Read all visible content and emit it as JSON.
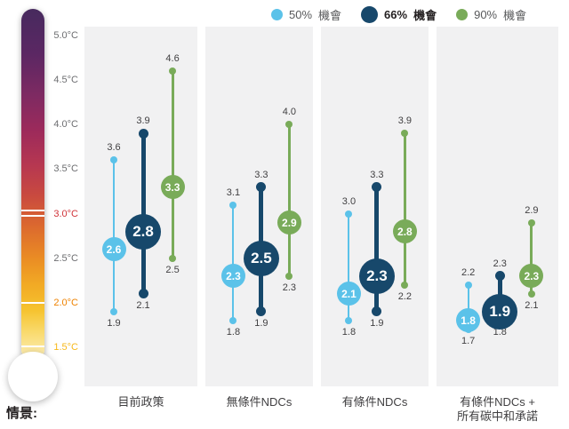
{
  "scenario_prefix": "情景:",
  "legend": {
    "items": [
      {
        "pct": "50%",
        "word": "機會",
        "color": "#5bc2e9",
        "bold": false
      },
      {
        "pct": "66%",
        "word": "機會",
        "color": "#17486b",
        "bold": true
      },
      {
        "pct": "90%",
        "word": "機會",
        "color": "#79ab59",
        "bold": false
      }
    ]
  },
  "axis": {
    "unit": "°C",
    "ticks": [
      {
        "label": "5.0°C",
        "t": 5.0,
        "color": "#6d6e71"
      },
      {
        "label": "4.5°C",
        "t": 4.5,
        "color": "#6d6e71"
      },
      {
        "label": "4.0°C",
        "t": 4.0,
        "color": "#6d6e71"
      },
      {
        "label": "3.5°C",
        "t": 3.5,
        "color": "#6d6e71"
      },
      {
        "label": "3.0°C",
        "t": 3.0,
        "color": "#d03238"
      },
      {
        "label": "2.5°C",
        "t": 2.5,
        "color": "#6d6e71"
      },
      {
        "label": "2.0°C",
        "t": 2.0,
        "color": "#ef8200"
      },
      {
        "label": "1.5°C",
        "t": 1.5,
        "color": "#f7b819"
      }
    ]
  },
  "chart_data": {
    "type": "range-dot",
    "title": "",
    "ylabel": "°C",
    "ylim": [
      1.5,
      5.0
    ],
    "legend_position": "top",
    "series": [
      {
        "name": "50% 機會",
        "key": "p50",
        "color": "#5bc2e9"
      },
      {
        "name": "66% 機會",
        "key": "p66",
        "color": "#17486b"
      },
      {
        "name": "90% 機會",
        "key": "p90",
        "color": "#79ab59"
      }
    ],
    "scenarios": [
      {
        "label": "目前政策",
        "p50": {
          "low": 1.9,
          "mid": 2.6,
          "high": 3.6
        },
        "p66": {
          "low": 2.1,
          "mid": 2.8,
          "high": 3.9
        },
        "p90": {
          "low": 2.5,
          "mid": 3.3,
          "high": 4.6
        }
      },
      {
        "label": "無條件NDCs",
        "p50": {
          "low": 1.8,
          "mid": 2.3,
          "high": 3.1
        },
        "p66": {
          "low": 1.9,
          "mid": 2.5,
          "high": 3.3
        },
        "p90": {
          "low": 2.3,
          "mid": 2.9,
          "high": 4.0
        }
      },
      {
        "label": "有條件NDCs",
        "p50": {
          "low": 1.8,
          "mid": 2.1,
          "high": 3.0
        },
        "p66": {
          "low": 1.9,
          "mid": 2.3,
          "high": 3.3
        },
        "p90": {
          "low": 2.2,
          "mid": 2.8,
          "high": 3.9
        }
      },
      {
        "label": "有條件NDCs +\n所有碳中和承諾",
        "p50": {
          "low": 1.7,
          "mid": 1.8,
          "high": 2.2
        },
        "p66": {
          "low": 1.8,
          "mid": 1.9,
          "high": 2.3
        },
        "p90": {
          "low": 2.1,
          "mid": 2.3,
          "high": 2.9
        }
      }
    ]
  }
}
